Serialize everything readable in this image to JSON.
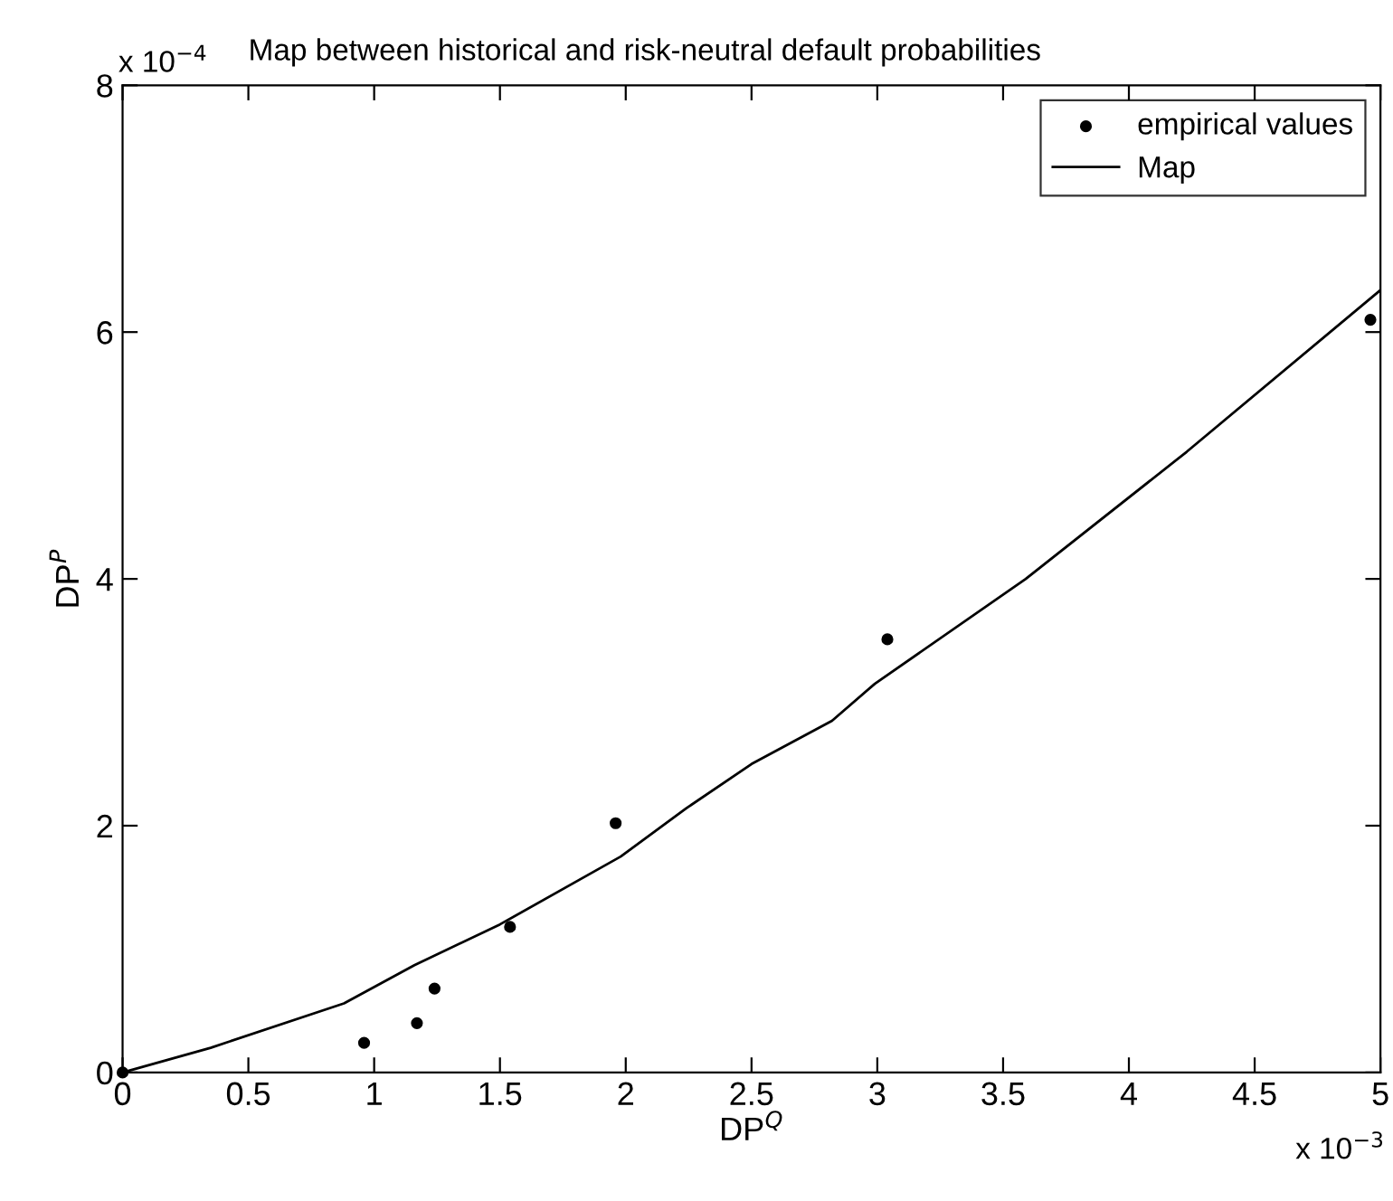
{
  "chart_data": {
    "type": "scatter",
    "title": "Map between historical and risk-neutral default probabilities",
    "xlabel": "DP$^{Q}$",
    "ylabel": "DP$^{P}$",
    "annotations": [
      "x 10$^{−4}$",
      "x 10$^{−3}$"
    ],
    "series": [
      {
        "name": "empirical values",
        "color": "#000000",
        "marker": "circle",
        "x": [
          0,
          0.96,
          1.17,
          1.24,
          1.54,
          1.96,
          3.04,
          4.96
        ],
        "values": [
          0,
          0.24,
          0.4,
          0.68,
          1.18,
          2.02,
          3.51,
          6.1
        ]
      },
      {
        "name": "Map",
        "type": "line",
        "color": "#000000",
        "line_style": "solid",
        "x": [
          0,
          0.35,
          0.88,
          1.16,
          1.5,
          1.98,
          2.24,
          2.5,
          2.82,
          2.99,
          3.59,
          4.23,
          5
        ],
        "values": [
          0,
          0.2,
          0.56,
          0.87,
          1.2,
          1.75,
          2.14,
          2.5,
          2.85,
          3.15,
          4.0,
          5.03,
          6.34
        ]
      }
    ],
    "xlim": [
      0,
      5
    ],
    "xticks": [
      0,
      0.5,
      1,
      1.5,
      2,
      2.5,
      3,
      3.5,
      4,
      4.5,
      5
    ],
    "ylim": [
      0,
      8
    ],
    "yticks": [
      0,
      2,
      4,
      6,
      8
    ],
    "legend": "top right"
  }
}
